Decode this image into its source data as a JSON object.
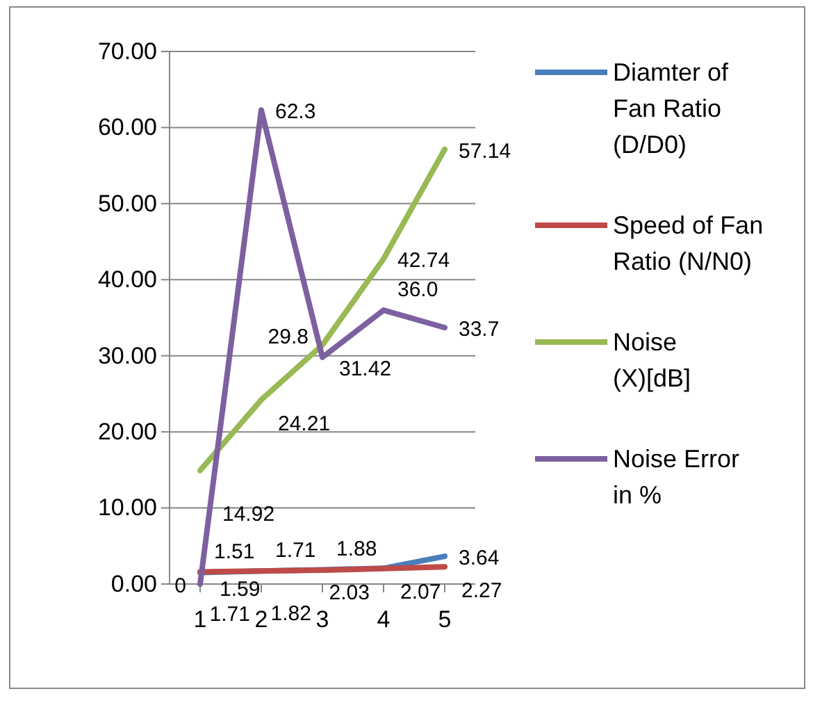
{
  "chart_data": {
    "type": "line",
    "categories": [
      "1",
      "2",
      "3",
      "4",
      "5"
    ],
    "series": [
      {
        "name": "Diamter of Fan Ratio (D/D0)",
        "color": "#4a7ebb",
        "values": [
          1.51,
          1.71,
          1.88,
          2.07,
          3.64
        ],
        "value_labels": [
          "1.51",
          "1.71",
          "1.88",
          "2.07",
          "3.64"
        ]
      },
      {
        "name": "Speed of Fan Ratio (N/N0)",
        "color": "#be4b48",
        "values": [
          1.59,
          1.71,
          1.82,
          2.03,
          2.27
        ],
        "value_labels": [
          "1.59",
          "1.71",
          "1.82",
          "2.03",
          "2.27"
        ]
      },
      {
        "name": "Noise (X)[dB]",
        "color": "#98b954",
        "values": [
          14.92,
          24.21,
          31.42,
          42.74,
          57.14
        ],
        "value_labels": [
          "14.92",
          "24.21",
          "31.42",
          "42.74",
          "57.14"
        ]
      },
      {
        "name": "Noise Error in %",
        "color": "#7d60a0",
        "values": [
          0,
          62.3,
          29.8,
          36.0,
          33.7
        ],
        "value_labels": [
          "0",
          "62.3",
          "29.8",
          "36.0",
          "33.7"
        ]
      }
    ],
    "ylim": [
      0,
      70
    ],
    "yticks": [
      {
        "value": 0,
        "label": "0.00"
      },
      {
        "value": 10,
        "label": "10.00"
      },
      {
        "value": 20,
        "label": "20.00"
      },
      {
        "value": 30,
        "label": "30.00"
      },
      {
        "value": 40,
        "label": "40.00"
      },
      {
        "value": 50,
        "label": "50.00"
      },
      {
        "value": 60,
        "label": "60.00"
      },
      {
        "value": 70,
        "label": "70.00"
      }
    ],
    "grid": "y",
    "legend": "right",
    "marker": "none",
    "line_style": "solid"
  }
}
